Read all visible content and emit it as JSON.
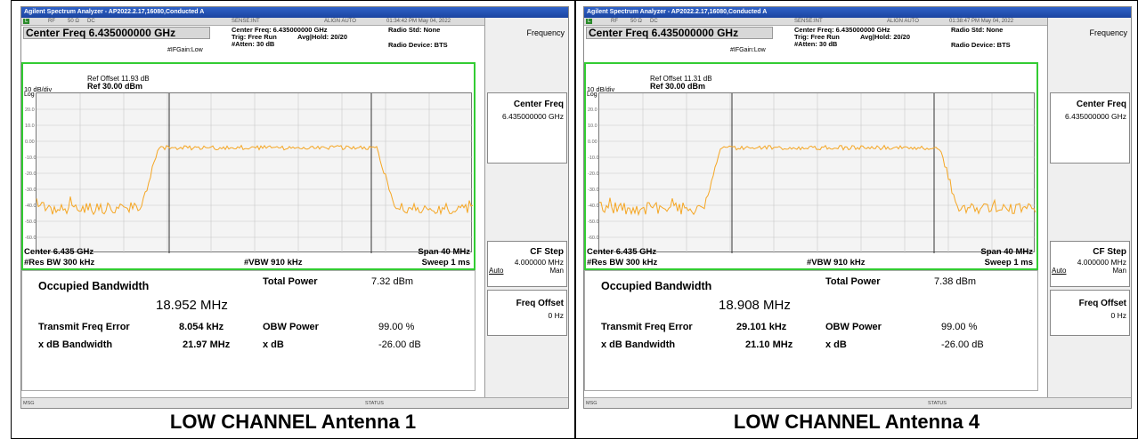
{
  "panels": [
    {
      "title_bar": "Agilent Spectrum Analyzer - AP2022.2.17,16080,Conducted A",
      "status": {
        "mode": "L",
        "rf": "RF",
        "ohm": "50 Ω",
        "coupling": "DC",
        "sense": "SENSE:INT",
        "align": "ALIGN AUTO",
        "timestamp": "01:34:42 PM May 04, 2022"
      },
      "center_freq_title": "Center Freq 6.435000000 GHz",
      "center_freq_info": "Center Freq: 6.435000000 GHz",
      "trig": "Trig: Free Run",
      "avg_hold": "Avg|Hold: 20/20",
      "atten": "#Atten: 30 dB",
      "ifgain": "#IFGain:Low",
      "radio_std": "Radio Std: None",
      "radio_device": "Radio Device: BTS",
      "ref_offset": "Ref Offset 11.93 dB",
      "ref_level": "Ref 30.00 dBm",
      "scale": "10 dB/div",
      "log": "Log",
      "y_ticks": [
        "20.0",
        "10.0",
        "0.00",
        "-10.0",
        "-20.0",
        "-30.0",
        "-40.0",
        "-50.0",
        "-60.0"
      ],
      "center_label": "Center  6.435 GHz",
      "res_bw": "#Res BW  300 kHz",
      "vbw": "#VBW  910 kHz",
      "span": "Span 40 MHz",
      "sweep": "Sweep  1 ms",
      "obw_label": "Occupied Bandwidth",
      "obw_value": "18.952 MHz",
      "total_power_label": "Total Power",
      "total_power_value": "7.32 dBm",
      "tfe_label": "Transmit Freq Error",
      "tfe_value": "8.054 kHz",
      "obw_power_label": "OBW Power",
      "obw_power_value": "99.00 %",
      "xdb_bw_label": "x dB Bandwidth",
      "xdb_bw_value": "21.97 MHz",
      "xdb_label": "x dB",
      "xdb_value": "-26.00 dB",
      "msg": "MSG",
      "status_text": "STATUS",
      "softkeys": {
        "frequency": "Frequency",
        "center_freq": "Center Freq",
        "center_freq_value": "6.435000000 GHz",
        "cf_step": "CF Step",
        "cf_step_value": "4.000000 MHz",
        "auto": "Auto",
        "man": "Man",
        "freq_offset": "Freq Offset",
        "freq_offset_value": "0 Hz"
      },
      "caption": "LOW CHANNEL Antenna 1"
    },
    {
      "title_bar": "Agilent Spectrum Analyzer - AP2022.2.17,16080,Conducted A",
      "status": {
        "mode": "L",
        "rf": "RF",
        "ohm": "50 Ω",
        "coupling": "DC",
        "sense": "SENSE:INT",
        "align": "ALIGN AUTO",
        "timestamp": "01:38:47 PM May 04, 2022"
      },
      "center_freq_title": "Center Freq 6.435000000 GHz",
      "center_freq_info": "Center Freq: 6.435000000 GHz",
      "trig": "Trig: Free Run",
      "avg_hold": "Avg|Hold: 20/20",
      "atten": "#Atten: 30 dB",
      "ifgain": "#IFGain:Low",
      "radio_std": "Radio Std: None",
      "radio_device": "Radio Device: BTS",
      "ref_offset": "Ref Offset 11.31 dB",
      "ref_level": "Ref 30.00 dBm",
      "scale": "10 dB/div",
      "log": "Log",
      "y_ticks": [
        "20.0",
        "10.0",
        "0.00",
        "-10.0",
        "-20.0",
        "-30.0",
        "-40.0",
        "-50.0",
        "-60.0"
      ],
      "center_label": "Center  6.435 GHz",
      "res_bw": "#Res BW  300 kHz",
      "vbw": "#VBW  910 kHz",
      "span": "Span 40 MHz",
      "sweep": "Sweep  1 ms",
      "obw_label": "Occupied Bandwidth",
      "obw_value": "18.908 MHz",
      "total_power_label": "Total Power",
      "total_power_value": "7.38 dBm",
      "tfe_label": "Transmit Freq Error",
      "tfe_value": "29.101 kHz",
      "obw_power_label": "OBW Power",
      "obw_power_value": "99.00 %",
      "xdb_bw_label": "x dB Bandwidth",
      "xdb_bw_value": "21.10 MHz",
      "xdb_label": "x dB",
      "xdb_value": "-26.00 dB",
      "msg": "MSG",
      "status_text": "STATUS",
      "softkeys": {
        "frequency": "Frequency",
        "center_freq": "Center Freq",
        "center_freq_value": "6.435000000 GHz",
        "cf_step": "CF Step",
        "cf_step_value": "4.000000 MHz",
        "auto": "Auto",
        "man": "Man",
        "freq_offset": "Freq Offset",
        "freq_offset_value": "0 Hz"
      },
      "caption": "LOW CHANNEL Antenna 4"
    }
  ],
  "trace_color": "#f5a623",
  "marker_line_color": "#333333",
  "frame_color": "#33cc33"
}
